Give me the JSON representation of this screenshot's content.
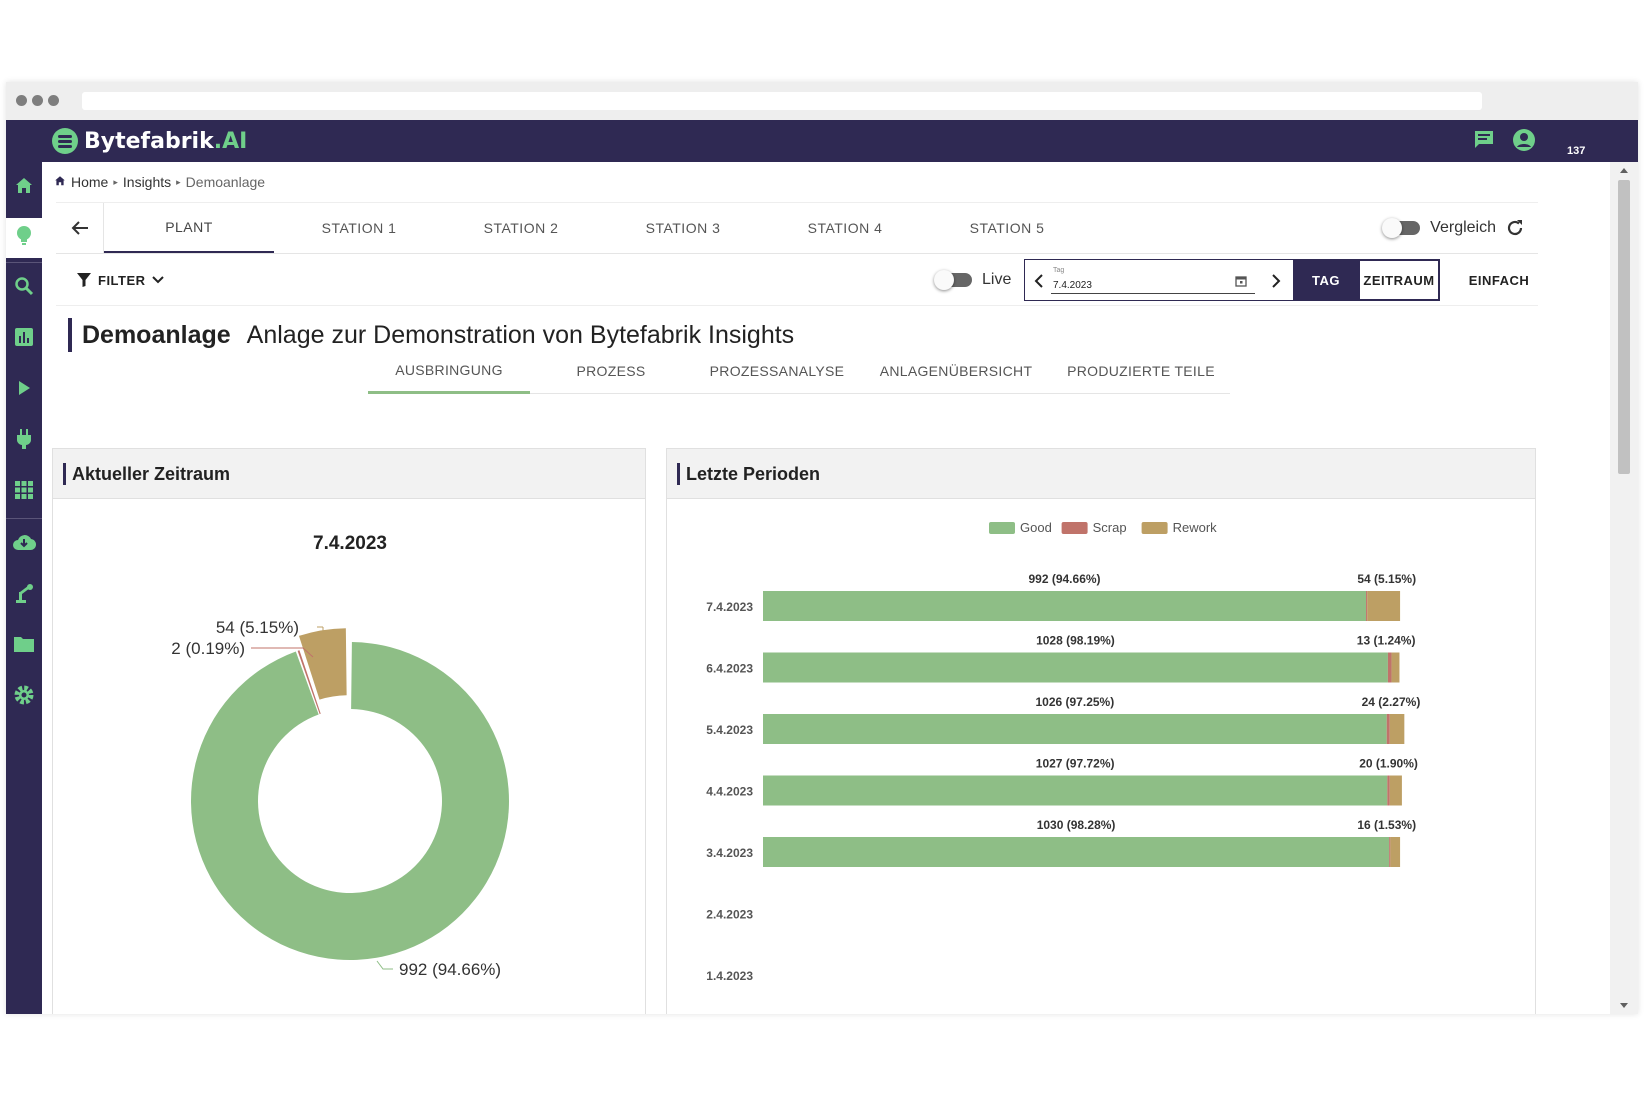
{
  "app": {
    "logo_main": "Bytefabrik",
    "logo_suffix": ".AI",
    "messages_badge": "137"
  },
  "breadcrumb": {
    "home": "Home",
    "insights": "Insights",
    "current": "Demoanlage"
  },
  "sidebar": {
    "icons": [
      "home-icon",
      "lightbulb-icon",
      "search-icon",
      "bar-chart-icon",
      "play-icon",
      "plug-icon",
      "apps-grid-icon",
      "cloud-download-icon",
      "robot-arm-icon",
      "folder-icon",
      "settings-gear-icon"
    ]
  },
  "stations": {
    "tabs": [
      "PLANT",
      "STATION 1",
      "STATION 2",
      "STATION 3",
      "STATION 4",
      "STATION 5"
    ],
    "active": "PLANT",
    "compare_label": "Vergleich"
  },
  "filters": {
    "filter_label": "FILTER",
    "live_label": "Live",
    "date_field_label": "Tag",
    "date_value": "7.4.2023",
    "btn_day": "TAG",
    "btn_period": "ZEITRAUM",
    "btn_simple": "EINFACH"
  },
  "page": {
    "title": "Demoanlage",
    "subtitle": "Anlage zur Demonstration von Bytefabrik Insights"
  },
  "subtabs": [
    "AUSBRINGUNG",
    "PROZESS",
    "PROZESSANALYSE",
    "ANLAGENÜBERSICHT",
    "PRODUZIERTE TEILE"
  ],
  "panels": {
    "current": "Aktueller Zeitraum",
    "last": "Letzte Perioden"
  },
  "colors": {
    "good": "#8ebe86",
    "scrap": "#c0736a",
    "rework": "#bd9f64",
    "brand": "#2f2953"
  },
  "chart_data": [
    {
      "type": "pie",
      "title": "7.4.2023",
      "slices": [
        {
          "name": "Good",
          "value": 992,
          "label": "992 (94.66%)"
        },
        {
          "name": "Scrap",
          "value": 2,
          "label": "2 (0.19%)"
        },
        {
          "name": "Rework",
          "value": 54,
          "label": "54 (5.15%)"
        }
      ]
    },
    {
      "type": "bar",
      "orientation": "horizontal",
      "stacked": true,
      "legend": [
        "Good",
        "Scrap",
        "Rework"
      ],
      "categories": [
        "7.4.2023",
        "6.4.2023",
        "5.4.2023",
        "4.4.2023",
        "3.4.2023",
        "2.4.2023",
        "1.4.2023"
      ],
      "series": [
        {
          "name": "Good",
          "values": [
            992,
            1028,
            1026,
            1027,
            1030,
            0,
            0
          ]
        },
        {
          "name": "Scrap",
          "values": [
            2,
            6,
            5,
            4,
            2,
            0,
            0
          ]
        },
        {
          "name": "Rework",
          "values": [
            54,
            13,
            24,
            20,
            16,
            0,
            0
          ]
        }
      ],
      "labels_good": [
        "992 (94.66%)",
        "1028 (98.19%)",
        "1026 (97.25%)",
        "1027 (97.72%)",
        "1030 (98.28%)",
        "",
        ""
      ],
      "labels_rework": [
        "54 (5.15%)",
        "13 (1.24%)",
        "24 (2.27%)",
        "20 (1.90%)",
        "16 (1.53%)",
        "",
        ""
      ]
    }
  ]
}
